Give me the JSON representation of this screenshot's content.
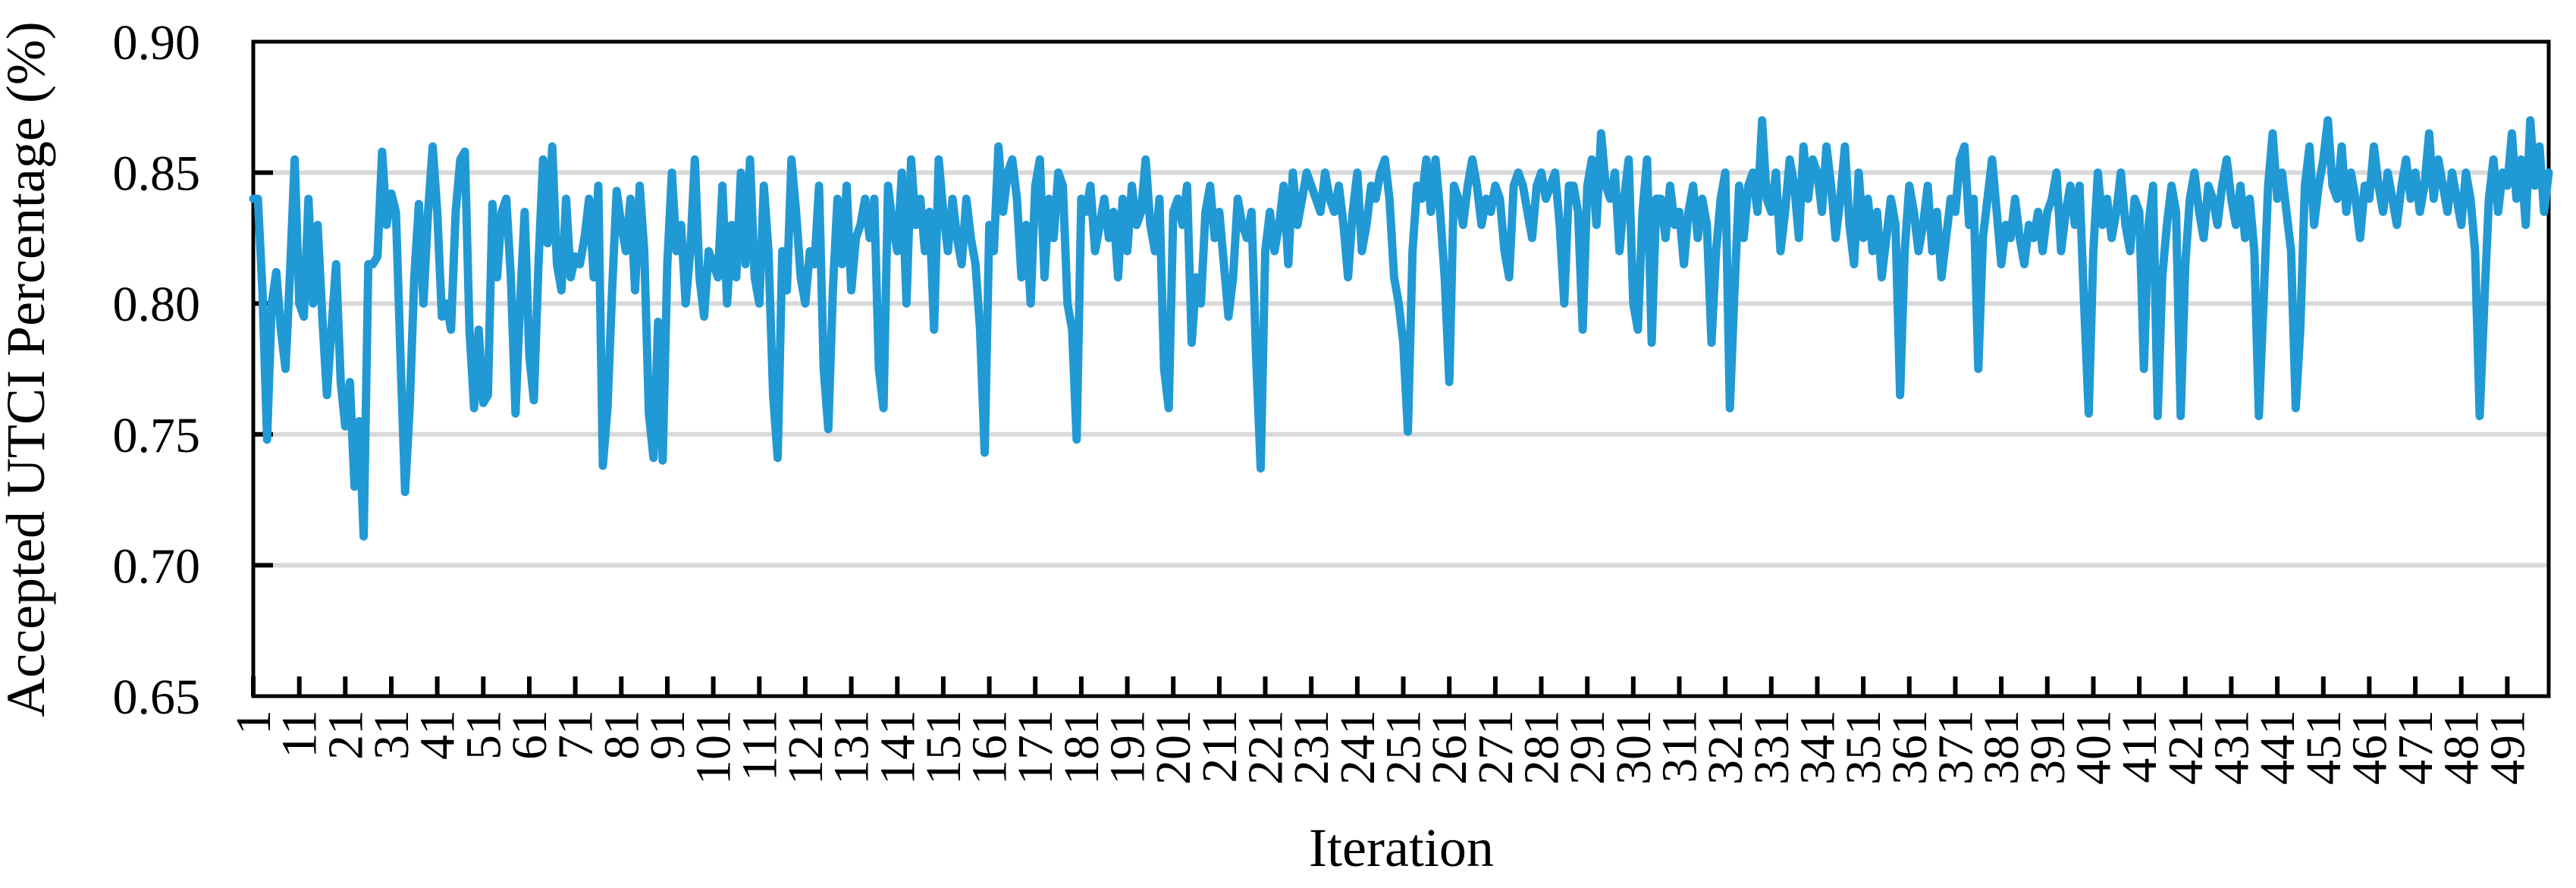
{
  "chart_data": {
    "type": "line",
    "xlabel": "Iteration",
    "ylabel": "Accepted UTCI Percentage (%)",
    "ylim": [
      0.65,
      0.9
    ],
    "xlim": [
      1,
      500
    ],
    "y_tick_labels": [
      "0.90",
      "0.85",
      "0.80",
      "0.75",
      "0.70",
      "0.65"
    ],
    "y_gridlines": [
      0.85,
      0.8,
      0.75,
      0.7
    ],
    "grid": "horizontal",
    "legend": "none",
    "colors": {
      "line": "#2199D4",
      "gridline": "#D9D9D9",
      "axis": "#000000",
      "text": "#000000",
      "background": "#FFFFFF"
    },
    "x_tick_labels": [
      "1",
      "11",
      "21",
      "31",
      "41",
      "51",
      "61",
      "71",
      "81",
      "91",
      "101",
      "111",
      "121",
      "131",
      "141",
      "151",
      "161",
      "171",
      "181",
      "191",
      "201",
      "211",
      "221",
      "231",
      "241",
      "251",
      "261",
      "271",
      "281",
      "291",
      "301",
      "311",
      "321",
      "331",
      "341",
      "351",
      "361",
      "371",
      "381",
      "391",
      "401",
      "411",
      "421",
      "431",
      "441",
      "451",
      "461",
      "471",
      "481",
      "491"
    ],
    "values": [
      0.84,
      0.84,
      0.805,
      0.748,
      0.8,
      0.812,
      0.79,
      0.775,
      0.812,
      0.855,
      0.8,
      0.795,
      0.84,
      0.8,
      0.83,
      0.795,
      0.765,
      0.79,
      0.815,
      0.77,
      0.753,
      0.77,
      0.73,
      0.755,
      0.711,
      0.815,
      0.815,
      0.818,
      0.858,
      0.83,
      0.842,
      0.835,
      0.78,
      0.728,
      0.76,
      0.81,
      0.838,
      0.8,
      0.835,
      0.86,
      0.835,
      0.795,
      0.8,
      0.79,
      0.835,
      0.855,
      0.858,
      0.79,
      0.76,
      0.79,
      0.762,
      0.765,
      0.838,
      0.81,
      0.835,
      0.84,
      0.81,
      0.758,
      0.8,
      0.835,
      0.78,
      0.763,
      0.815,
      0.855,
      0.823,
      0.86,
      0.815,
      0.805,
      0.84,
      0.81,
      0.818,
      0.815,
      0.825,
      0.84,
      0.81,
      0.845,
      0.738,
      0.76,
      0.805,
      0.843,
      0.83,
      0.82,
      0.84,
      0.805,
      0.845,
      0.82,
      0.758,
      0.741,
      0.793,
      0.74,
      0.815,
      0.85,
      0.82,
      0.83,
      0.8,
      0.82,
      0.855,
      0.81,
      0.795,
      0.82,
      0.815,
      0.81,
      0.845,
      0.8,
      0.83,
      0.81,
      0.85,
      0.815,
      0.855,
      0.81,
      0.8,
      0.845,
      0.82,
      0.765,
      0.741,
      0.82,
      0.805,
      0.855,
      0.835,
      0.81,
      0.8,
      0.82,
      0.815,
      0.845,
      0.775,
      0.752,
      0.805,
      0.84,
      0.815,
      0.845,
      0.805,
      0.825,
      0.83,
      0.84,
      0.825,
      0.84,
      0.775,
      0.76,
      0.845,
      0.83,
      0.82,
      0.85,
      0.8,
      0.855,
      0.83,
      0.84,
      0.82,
      0.835,
      0.79,
      0.855,
      0.835,
      0.82,
      0.84,
      0.825,
      0.815,
      0.84,
      0.825,
      0.815,
      0.79,
      0.743,
      0.83,
      0.82,
      0.86,
      0.835,
      0.85,
      0.855,
      0.84,
      0.81,
      0.83,
      0.8,
      0.845,
      0.855,
      0.81,
      0.84,
      0.825,
      0.85,
      0.845,
      0.8,
      0.79,
      0.748,
      0.84,
      0.835,
      0.845,
      0.82,
      0.83,
      0.84,
      0.825,
      0.835,
      0.81,
      0.84,
      0.82,
      0.845,
      0.83,
      0.835,
      0.855,
      0.83,
      0.82,
      0.84,
      0.775,
      0.76,
      0.835,
      0.84,
      0.83,
      0.845,
      0.785,
      0.81,
      0.8,
      0.835,
      0.845,
      0.825,
      0.835,
      0.815,
      0.795,
      0.81,
      0.84,
      0.83,
      0.825,
      0.835,
      0.78,
      0.737,
      0.82,
      0.835,
      0.82,
      0.83,
      0.845,
      0.815,
      0.85,
      0.83,
      0.84,
      0.85,
      0.845,
      0.84,
      0.835,
      0.85,
      0.84,
      0.835,
      0.845,
      0.83,
      0.81,
      0.835,
      0.85,
      0.82,
      0.83,
      0.845,
      0.84,
      0.85,
      0.855,
      0.84,
      0.81,
      0.8,
      0.785,
      0.751,
      0.82,
      0.845,
      0.84,
      0.855,
      0.835,
      0.855,
      0.835,
      0.81,
      0.77,
      0.845,
      0.84,
      0.83,
      0.845,
      0.855,
      0.845,
      0.83,
      0.84,
      0.835,
      0.845,
      0.84,
      0.82,
      0.81,
      0.845,
      0.85,
      0.845,
      0.835,
      0.825,
      0.845,
      0.85,
      0.84,
      0.845,
      0.85,
      0.83,
      0.8,
      0.845,
      0.845,
      0.835,
      0.79,
      0.845,
      0.855,
      0.83,
      0.865,
      0.845,
      0.84,
      0.85,
      0.82,
      0.84,
      0.855,
      0.8,
      0.79,
      0.835,
      0.855,
      0.785,
      0.84,
      0.84,
      0.825,
      0.845,
      0.83,
      0.835,
      0.815,
      0.835,
      0.845,
      0.825,
      0.84,
      0.83,
      0.785,
      0.82,
      0.84,
      0.85,
      0.76,
      0.805,
      0.845,
      0.825,
      0.845,
      0.85,
      0.835,
      0.87,
      0.84,
      0.835,
      0.85,
      0.82,
      0.835,
      0.855,
      0.845,
      0.825,
      0.86,
      0.84,
      0.855,
      0.85,
      0.835,
      0.86,
      0.845,
      0.825,
      0.84,
      0.86,
      0.83,
      0.815,
      0.85,
      0.825,
      0.84,
      0.82,
      0.835,
      0.81,
      0.825,
      0.84,
      0.83,
      0.765,
      0.82,
      0.845,
      0.835,
      0.82,
      0.83,
      0.845,
      0.82,
      0.835,
      0.81,
      0.825,
      0.84,
      0.835,
      0.855,
      0.86,
      0.83,
      0.84,
      0.775,
      0.825,
      0.84,
      0.855,
      0.835,
      0.815,
      0.83,
      0.825,
      0.84,
      0.825,
      0.815,
      0.83,
      0.825,
      0.835,
      0.82,
      0.835,
      0.84,
      0.85,
      0.82,
      0.835,
      0.845,
      0.83,
      0.845,
      0.8,
      0.758,
      0.82,
      0.85,
      0.83,
      0.84,
      0.825,
      0.835,
      0.85,
      0.83,
      0.82,
      0.84,
      0.835,
      0.775,
      0.83,
      0.845,
      0.757,
      0.81,
      0.83,
      0.845,
      0.835,
      0.757,
      0.815,
      0.84,
      0.85,
      0.835,
      0.825,
      0.845,
      0.84,
      0.83,
      0.845,
      0.855,
      0.84,
      0.83,
      0.845,
      0.825,
      0.84,
      0.82,
      0.757,
      0.8,
      0.845,
      0.865,
      0.84,
      0.85,
      0.835,
      0.82,
      0.76,
      0.79,
      0.845,
      0.86,
      0.83,
      0.845,
      0.855,
      0.87,
      0.845,
      0.84,
      0.86,
      0.835,
      0.85,
      0.84,
      0.825,
      0.845,
      0.84,
      0.86,
      0.845,
      0.835,
      0.85,
      0.84,
      0.83,
      0.845,
      0.855,
      0.84,
      0.85,
      0.835,
      0.845,
      0.865,
      0.84,
      0.855,
      0.845,
      0.835,
      0.85,
      0.84,
      0.83,
      0.85,
      0.84,
      0.82,
      0.757,
      0.8,
      0.84,
      0.855,
      0.835,
      0.85,
      0.845,
      0.865,
      0.84,
      0.855,
      0.83,
      0.87,
      0.845,
      0.86,
      0.835,
      0.85
    ]
  }
}
